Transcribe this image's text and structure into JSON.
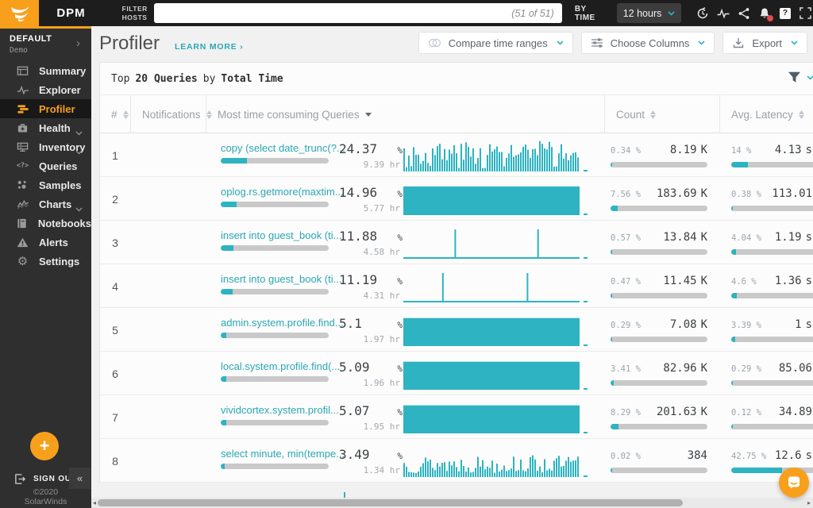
{
  "colors": {
    "accent_orange": "#f8a01c",
    "accent_teal": "#2db3c1",
    "link_teal": "#2aa9b7",
    "notification_red": "#e5484d"
  },
  "topbar": {
    "brand": "DPM",
    "filter_line1": "FILTER",
    "filter_line2": "HOSTS",
    "search_value": "",
    "search_count": "(51 of 51)",
    "by_time": "BY TIME",
    "time_range": "12 hours"
  },
  "sidebar": {
    "env_name": "DEFAULT",
    "env_sub": "Demo",
    "items": [
      {
        "label": "Summary",
        "icon": "summary-icon"
      },
      {
        "label": "Explorer",
        "icon": "explorer-icon"
      },
      {
        "label": "Profiler",
        "icon": "profiler-icon",
        "active": true
      },
      {
        "label": "Health",
        "icon": "health-icon",
        "expandable": true
      },
      {
        "label": "Inventory",
        "icon": "inventory-icon",
        "expandable": true
      },
      {
        "label": "Queries",
        "icon": "queries-icon"
      },
      {
        "label": "Samples",
        "icon": "samples-icon"
      },
      {
        "label": "Charts",
        "icon": "charts-icon",
        "expandable": true
      },
      {
        "label": "Notebooks",
        "icon": "notebooks-icon"
      },
      {
        "label": "Alerts",
        "icon": "alerts-icon"
      },
      {
        "label": "Settings",
        "icon": "settings-icon"
      }
    ],
    "sign_out": "SIGN OUT",
    "copyright_year": "©2020",
    "copyright_name": "SolarWinds"
  },
  "header": {
    "title": "Profiler",
    "learn_more": "LEARN MORE ›",
    "buttons": {
      "compare": "Compare time ranges",
      "columns": "Choose Columns",
      "export": "Export"
    }
  },
  "table": {
    "summary": {
      "prefix": "Top",
      "count": "20 Queries",
      "mid": "by",
      "metric": "Total Time"
    },
    "columns": [
      "#",
      "Notifications",
      "Most time consuming Queries",
      "Count",
      "Avg. Latency"
    ],
    "rows": [
      {
        "rank": "1",
        "query": "copy (select date_trunc(?...",
        "total_pct": "24.37",
        "total_time": "9.39 hr",
        "total_fill": 24.37,
        "sparkline": {
          "type": "noise",
          "seed": 3,
          "base": 0.1,
          "amp": 0.85
        },
        "count_pct": "0.34 %",
        "count_val": "8.19",
        "count_unit": "K",
        "count_fill": 0.34,
        "latency_pct": "14 %",
        "latency_val": "4.13",
        "latency_unit": "s",
        "latency_fill": 14
      },
      {
        "rank": "2",
        "query": "oplog.rs.getmore(maxtim...",
        "total_pct": "14.96",
        "total_time": "5.77 hr",
        "total_fill": 14.96,
        "sparkline": {
          "type": "solid",
          "seed": 5,
          "level": 0.88
        },
        "count_pct": "7.56 %",
        "count_val": "183.69",
        "count_unit": "K",
        "count_fill": 7.56,
        "latency_pct": "0.38 %",
        "latency_val": "113.01",
        "latency_unit": "",
        "latency_fill": 0.38
      },
      {
        "rank": "3",
        "query": "insert into guest_book (ti...",
        "total_pct": "11.88",
        "total_time": "4.58 hr",
        "total_fill": 11.88,
        "sparkline": {
          "type": "spikes",
          "positions": [
            0.29,
            0.76
          ]
        },
        "count_pct": "0.57 %",
        "count_val": "13.84",
        "count_unit": "K",
        "count_fill": 0.57,
        "latency_pct": "4.04 %",
        "latency_val": "1.19",
        "latency_unit": "s",
        "latency_fill": 4.04
      },
      {
        "rank": "4",
        "query": "insert into guest_book (ti...",
        "total_pct": "11.19",
        "total_time": "4.31 hr",
        "total_fill": 11.19,
        "sparkline": {
          "type": "spikes",
          "positions": [
            0.22,
            0.7
          ]
        },
        "count_pct": "0.47 %",
        "count_val": "11.45",
        "count_unit": "K",
        "count_fill": 0.47,
        "latency_pct": "4.6 %",
        "latency_val": "1.36",
        "latency_unit": "s",
        "latency_fill": 4.6
      },
      {
        "rank": "5",
        "query": "admin.system.profile.find...",
        "total_pct": "5.1",
        "total_time": "1.97 hr",
        "total_fill": 5.1,
        "sparkline": {
          "type": "solid",
          "seed": 8,
          "level": 0.86
        },
        "count_pct": "0.29 %",
        "count_val": "7.08",
        "count_unit": "K",
        "count_fill": 0.29,
        "latency_pct": "3.39 %",
        "latency_val": "1",
        "latency_unit": "s",
        "latency_fill": 3.39
      },
      {
        "rank": "6",
        "query": "local.system.profile.find(...",
        "total_pct": "5.09",
        "total_time": "1.96 hr",
        "total_fill": 5.09,
        "sparkline": {
          "type": "solid",
          "seed": 9,
          "level": 0.86
        },
        "count_pct": "3.41 %",
        "count_val": "82.96",
        "count_unit": "K",
        "count_fill": 3.41,
        "latency_pct": "0.29 %",
        "latency_val": "85.06",
        "latency_unit": "",
        "latency_fill": 0.29
      },
      {
        "rank": "7",
        "query": "vividcortex.system.profil...",
        "total_pct": "5.07",
        "total_time": "1.95 hr",
        "total_fill": 5.07,
        "sparkline": {
          "type": "solid",
          "seed": 11,
          "level": 0.86
        },
        "count_pct": "8.29 %",
        "count_val": "201.63",
        "count_unit": "K",
        "count_fill": 8.29,
        "latency_pct": "0.12 %",
        "latency_val": "34.89",
        "latency_unit": "",
        "latency_fill": 0.12
      },
      {
        "rank": "8",
        "query": "select minute, min(tempe...",
        "total_pct": "3.49",
        "total_time": "1.34 hr",
        "total_fill": 3.49,
        "sparkline": {
          "type": "noise",
          "seed": 13,
          "base": 0.12,
          "amp": 0.55
        },
        "count_pct": "0.02 %",
        "count_val": "384",
        "count_unit": "",
        "count_fill": 0.02,
        "latency_pct": "42.75 %",
        "latency_val": "12.6",
        "latency_unit": "s",
        "latency_fill": 42.75
      }
    ]
  }
}
